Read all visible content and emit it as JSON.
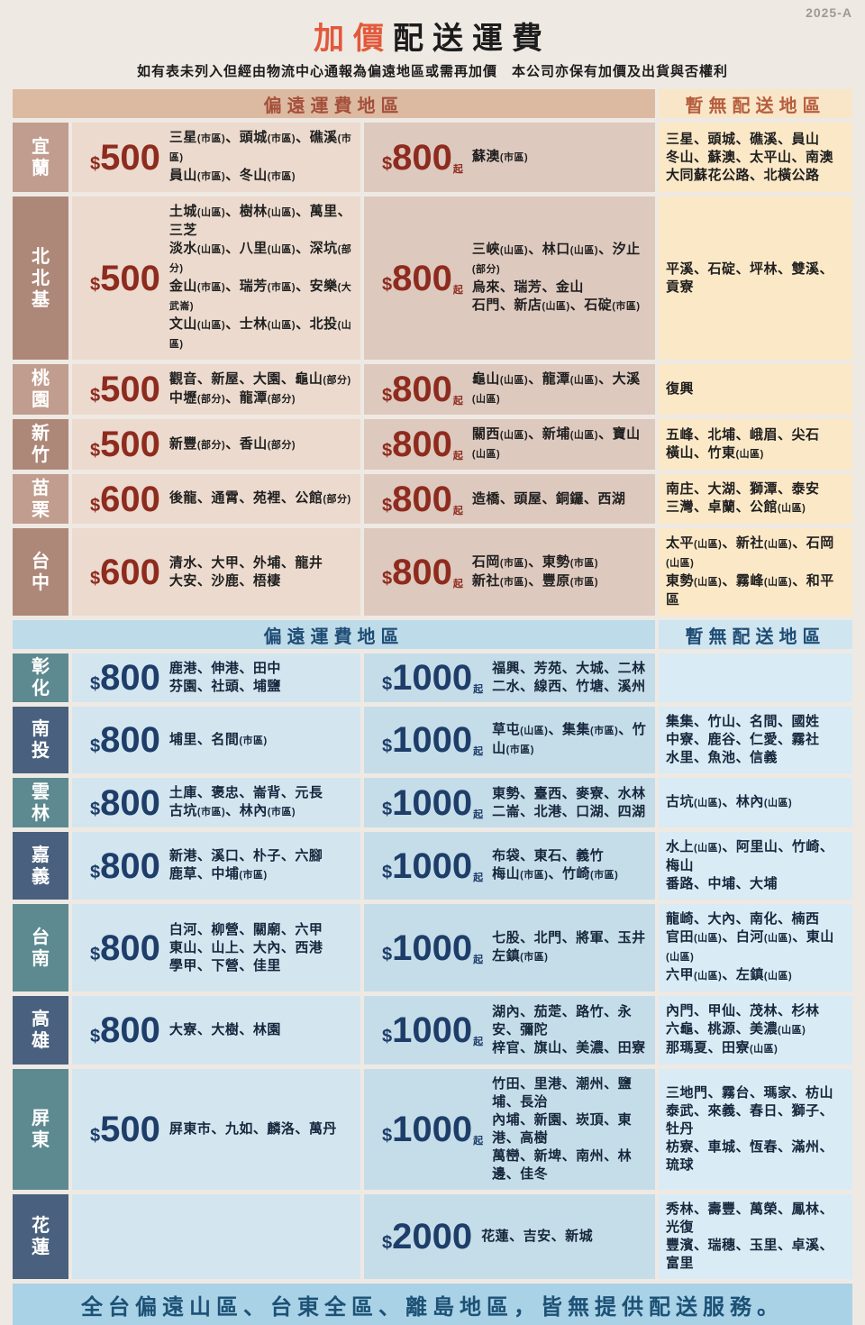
{
  "meta": {
    "version_tag": "2025-A"
  },
  "header": {
    "title_accent": "加價",
    "title_rest": "配送運費",
    "subtitle": "如有表未列入但經由物流中心通報為偏遠地區或需再加價　本公司亦保有加價及出貨與否權利"
  },
  "colors": {
    "title_accent": "#e2593a",
    "warm_header_text": "#a5503c",
    "blue_header_text": "#1f4d75",
    "warm_price": "#8e2b1f",
    "blue_price": "#1e3e69",
    "footer_text": "#1d5175"
  },
  "table": {
    "currency": "$",
    "sections": [
      {
        "theme": "warm",
        "header_left": "偏遠運費地區",
        "header_right": "暫無配送地區",
        "rows": [
          {
            "region": "宜蘭",
            "price1": {
              "amount": "500",
              "suffix": ""
            },
            "areas1": [
              "三星(市區)、頭城(市區)、礁溪(市區)",
              "員山(市區)、冬山(市區)"
            ],
            "price2": {
              "amount": "800",
              "suffix": "起"
            },
            "areas2": [
              "蘇澳(市區)"
            ],
            "no_delivery": [
              "三星、頭城、礁溪、員山",
              "冬山、蘇澳、太平山、南澳",
              "大同蘇花公路、北橫公路"
            ]
          },
          {
            "region": "北北基",
            "price1": {
              "amount": "500",
              "suffix": ""
            },
            "areas1": [
              "土城(山區)、樹林(山區)、萬里、三芝",
              "淡水(山區)、八里(山區)、深坑(部分)",
              "金山(市區)、瑞芳(市區)、安樂(大武崙)",
              "文山(山區)、士林(山區)、北投(山區)"
            ],
            "price2": {
              "amount": "800",
              "suffix": "起"
            },
            "areas2": [
              "三峽(山區)、林口(山區)、汐止(部分)",
              "烏來、瑞芳、金山",
              "石門、新店(山區)、石碇(市區)"
            ],
            "no_delivery": [
              "平溪、石碇、坪林、雙溪、貢寮"
            ]
          },
          {
            "region": "桃園",
            "price1": {
              "amount": "500",
              "suffix": ""
            },
            "areas1": [
              "觀音、新屋、大園、龜山(部分)",
              "中壢(部分)、龍潭(部分)"
            ],
            "price2": {
              "amount": "800",
              "suffix": "起"
            },
            "areas2": [
              "龜山(山區)、龍潭(山區)、大溪(山區)"
            ],
            "no_delivery": [
              "復興"
            ]
          },
          {
            "region": "新竹",
            "price1": {
              "amount": "500",
              "suffix": ""
            },
            "areas1": [
              "新豐(部分)、香山(部分)"
            ],
            "price2": {
              "amount": "800",
              "suffix": "起"
            },
            "areas2": [
              "關西(山區)、新埔(山區)、寶山(山區)"
            ],
            "no_delivery": [
              "五峰、北埔、峨眉、尖石",
              "橫山、竹東(山區)"
            ]
          },
          {
            "region": "苗栗",
            "price1": {
              "amount": "600",
              "suffix": ""
            },
            "areas1": [
              "後龍、通霄、苑裡、公館(部分)"
            ],
            "price2": {
              "amount": "800",
              "suffix": "起"
            },
            "areas2": [
              "造橋、頭屋、銅鑼、西湖"
            ],
            "no_delivery": [
              "南庄、大湖、獅潭、泰安",
              "三灣、卓蘭、公館(山區)"
            ]
          },
          {
            "region": "台中",
            "price1": {
              "amount": "600",
              "suffix": ""
            },
            "areas1": [
              "清水、大甲、外埔、龍井",
              "大安、沙鹿、梧棲"
            ],
            "price2": {
              "amount": "800",
              "suffix": "起"
            },
            "areas2": [
              "石岡(市區)、東勢(市區)",
              "新社(市區)、豐原(市區)"
            ],
            "no_delivery": [
              "太平(山區)、新社(山區)、石岡(山區)",
              "東勢(山區)、霧峰(山區)、和平區"
            ]
          }
        ]
      },
      {
        "theme": "blue",
        "header_left": "偏遠運費地區",
        "header_right": "暫無配送地區",
        "rows": [
          {
            "region": "彰化",
            "price1": {
              "amount": "800",
              "suffix": ""
            },
            "areas1": [
              "鹿港、伸港、田中",
              "芬園、社頭、埔鹽"
            ],
            "price2": {
              "amount": "1000",
              "suffix": "起"
            },
            "areas2": [
              "福興、芳苑、大城、二林",
              "二水、線西、竹塘、溪州"
            ],
            "no_delivery": []
          },
          {
            "region": "南投",
            "price1": {
              "amount": "800",
              "suffix": ""
            },
            "areas1": [
              "埔里、名間(市區)"
            ],
            "price2": {
              "amount": "1000",
              "suffix": "起"
            },
            "areas2": [
              "草屯(山區)、集集(市區)、竹山(市區)"
            ],
            "no_delivery": [
              "集集、竹山、名間、國姓",
              "中寮、鹿谷、仁愛、霧社",
              "水里、魚池、信義"
            ]
          },
          {
            "region": "雲林",
            "price1": {
              "amount": "800",
              "suffix": ""
            },
            "areas1": [
              "土庫、褒忠、崙背、元長",
              "古坑(市區)、林內(市區)"
            ],
            "price2": {
              "amount": "1000",
              "suffix": "起"
            },
            "areas2": [
              "東勢、臺西、麥寮、水林",
              "二崙、北港、口湖、四湖"
            ],
            "no_delivery": [
              "古坑(山區)、林內(山區)"
            ]
          },
          {
            "region": "嘉義",
            "price1": {
              "amount": "800",
              "suffix": ""
            },
            "areas1": [
              "新港、溪口、朴子、六腳",
              "鹿草、中埔(市區)"
            ],
            "price2": {
              "amount": "1000",
              "suffix": "起"
            },
            "areas2": [
              "布袋、東石、義竹",
              "梅山(市區)、竹崎(市區)"
            ],
            "no_delivery": [
              "水上(山區)、阿里山、竹崎、梅山",
              "番路、中埔、大埔"
            ]
          },
          {
            "region": "台南",
            "price1": {
              "amount": "800",
              "suffix": ""
            },
            "areas1": [
              "白河、柳營、關廟、六甲",
              "東山、山上、大內、西港",
              "學甲、下營、佳里"
            ],
            "price2": {
              "amount": "1000",
              "suffix": "起"
            },
            "areas2": [
              "七股、北門、將軍、玉井",
              "左鎮(市區)"
            ],
            "no_delivery": [
              "龍崎、大內、南化、楠西",
              "官田(山區)、白河(山區)、東山(山區)",
              "六甲(山區)、左鎮(山區)"
            ]
          },
          {
            "region": "高雄",
            "price1": {
              "amount": "800",
              "suffix": ""
            },
            "areas1": [
              "大寮、大樹、林園"
            ],
            "price2": {
              "amount": "1000",
              "suffix": "起"
            },
            "areas2": [
              "湖內、茄萣、路竹、永安、彌陀",
              "梓官、旗山、美濃、田寮"
            ],
            "no_delivery": [
              "內門、甲仙、茂林、杉林",
              "六龜、桃源、美濃(山區)",
              "那瑪夏、田寮(山區)"
            ]
          },
          {
            "region": "屏東",
            "price1": {
              "amount": "500",
              "suffix": ""
            },
            "areas1": [
              "屏東市、九如、麟洛、萬丹"
            ],
            "price2": {
              "amount": "1000",
              "suffix": "起"
            },
            "areas2": [
              "竹田、里港、潮州、鹽埔、長治",
              "內埔、新園、崁頂、東港、高樹",
              "萬巒、新埤、南州、林邊、佳冬"
            ],
            "no_delivery": [
              "三地門、霧台、瑪家、枋山",
              "泰武、來義、春日、獅子、牡丹",
              "枋寮、車城、恆春、滿州、琉球"
            ]
          },
          {
            "region": "花蓮",
            "price1": null,
            "areas1": [],
            "price2": {
              "amount": "2000",
              "suffix": ""
            },
            "areas2": [
              "花蓮、吉安、新城"
            ],
            "no_delivery": [
              "秀林、壽豐、萬榮、鳳林、光復",
              "豐濱、瑞穗、玉里、卓溪、富里"
            ]
          }
        ]
      }
    ]
  },
  "footer": {
    "notice": "全台偏遠山區、台東全區、離島地區，皆無提供配送服務。"
  }
}
